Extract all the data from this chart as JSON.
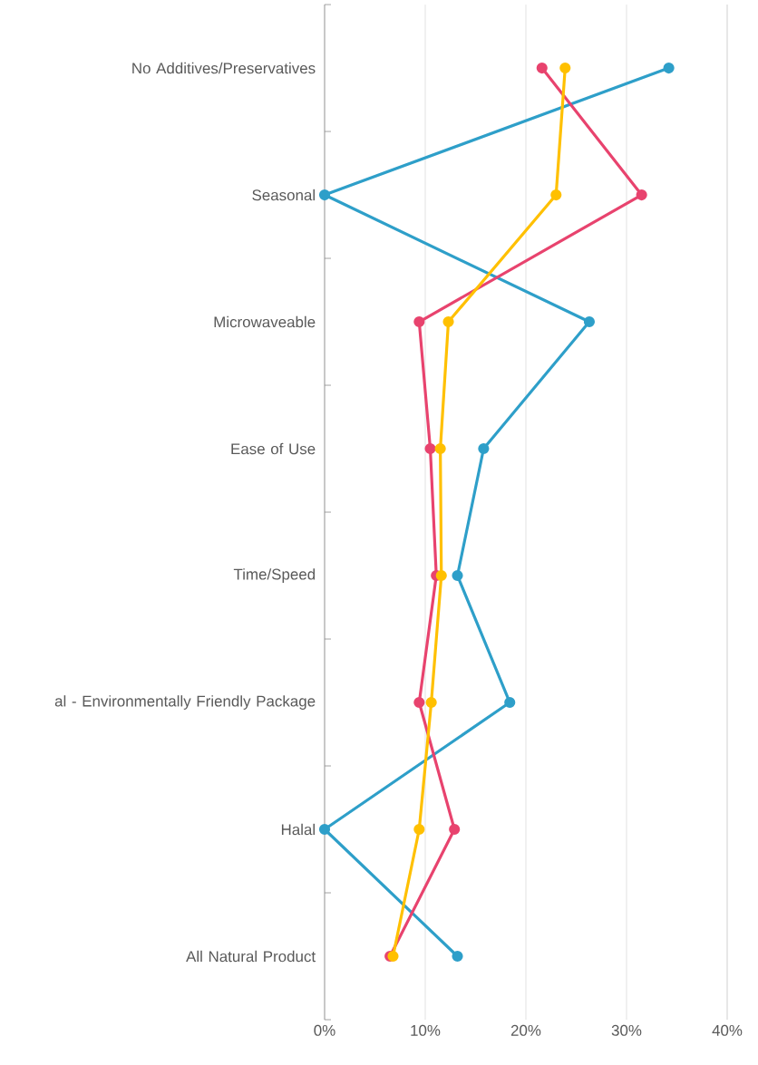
{
  "chart_data": {
    "type": "line",
    "orientation": "horizontal",
    "categories": [
      "No Additives/Preservatives",
      "Seasonal",
      "Microwaveable",
      "Ease of Use",
      "Time/Speed",
      "al - Environmentally Friendly Package",
      "Halal",
      "All Natural Product"
    ],
    "series": [
      {
        "color": "#2e9fc9",
        "values": [
          34.2,
          0,
          26.3,
          15.8,
          13.2,
          18.4,
          0,
          13.2
        ]
      },
      {
        "color": "#e8436e",
        "values": [
          21.6,
          31.5,
          9.4,
          10.5,
          11.1,
          9.4,
          12.9,
          6.5
        ]
      },
      {
        "color": "#ffc000",
        "values": [
          23.9,
          23.0,
          12.3,
          11.5,
          11.6,
          10.6,
          9.4,
          6.8
        ]
      }
    ],
    "xlim": [
      0,
      40
    ],
    "xticks": [
      {
        "value": 0,
        "label": "0%"
      },
      {
        "value": 10,
        "label": "10%"
      },
      {
        "value": 20,
        "label": "20%"
      },
      {
        "value": 30,
        "label": "30%"
      },
      {
        "value": 40,
        "label": "40%"
      }
    ],
    "grid": "x",
    "marker": "circle",
    "line_style": "solid"
  }
}
